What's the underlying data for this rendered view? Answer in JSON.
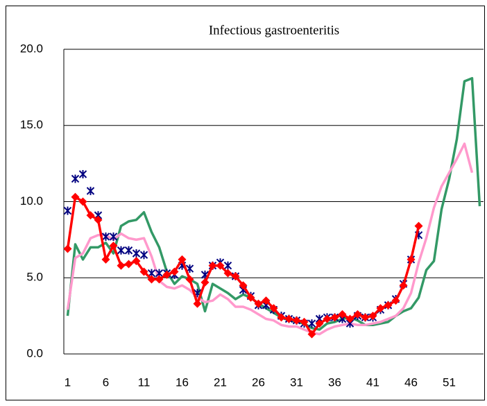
{
  "chart_data": {
    "type": "line",
    "title": "Infectious gastroenteritis",
    "categories": [
      "1",
      null,
      null,
      null,
      null,
      "6",
      null,
      null,
      null,
      null,
      "11",
      null,
      null,
      null,
      null,
      "16",
      null,
      null,
      null,
      null,
      "21",
      null,
      null,
      null,
      null,
      "26",
      null,
      null,
      null,
      null,
      "31",
      null,
      null,
      null,
      null,
      "36",
      null,
      null,
      null,
      null,
      "41",
      null,
      null,
      null,
      null,
      "46",
      null,
      null,
      null,
      null,
      "51",
      null,
      null,
      null,
      null
    ],
    "ylim": [
      0,
      20
    ],
    "yticks": [
      {
        "value": 0,
        "label": "0.0"
      },
      {
        "value": 5,
        "label": "5.0"
      },
      {
        "value": 10,
        "label": "10.0"
      },
      {
        "value": 15,
        "label": "15.0"
      },
      {
        "value": 20,
        "label": "20.0"
      }
    ],
    "grid": true,
    "series": [
      {
        "color": "#339966",
        "marker": "none",
        "line": true,
        "values": [
          2.5,
          7.2,
          6.2,
          7.0,
          7.0,
          7.3,
          6.6,
          8.4,
          8.7,
          8.8,
          9.3,
          8.0,
          7.0,
          5.4,
          4.6,
          5.1,
          4.9,
          4.6,
          2.8,
          4.6,
          4.3,
          4.0,
          3.6,
          3.9,
          3.7,
          3.3,
          3.0,
          2.7,
          2.4,
          2.2,
          2.1,
          2.0,
          1.7,
          1.6,
          2.0,
          2.1,
          2.3,
          2.4,
          2.2,
          1.9,
          1.9,
          2.0,
          2.1,
          2.5,
          2.8,
          3.0,
          3.7,
          5.5,
          6.1,
          9.5,
          11.5,
          14.1,
          17.9,
          18.1,
          9.7
        ]
      },
      {
        "color": "#ff99cc",
        "marker": "none",
        "line": true,
        "values": [
          2.9,
          6.3,
          6.6,
          7.6,
          7.8,
          7.8,
          7.5,
          7.9,
          7.6,
          7.5,
          7.6,
          6.4,
          4.8,
          4.4,
          4.3,
          4.5,
          4.2,
          3.7,
          3.4,
          3.5,
          3.9,
          3.6,
          3.1,
          3.1,
          2.9,
          2.6,
          2.3,
          2.2,
          1.9,
          1.8,
          1.8,
          1.6,
          1.4,
          1.3,
          1.6,
          1.8,
          1.9,
          2.0,
          1.9,
          1.9,
          2.0,
          2.1,
          2.3,
          2.5,
          3.0,
          4.0,
          6.0,
          7.6,
          9.6,
          11.0,
          11.9,
          12.8,
          13.8,
          11.9,
          null
        ]
      },
      {
        "color": "#000080",
        "marker": "asterisk",
        "line": false,
        "values": [
          9.4,
          11.5,
          11.8,
          10.7,
          9.1,
          7.7,
          7.7,
          6.8,
          6.8,
          6.6,
          6.5,
          5.3,
          5.3,
          5.3,
          5.2,
          5.8,
          5.6,
          4.0,
          5.2,
          5.8,
          6.0,
          5.8,
          5.1,
          4.2,
          3.8,
          3.2,
          3.2,
          2.9,
          2.5,
          2.3,
          2.2,
          2.0,
          2.0,
          2.3,
          2.4,
          2.4,
          2.3,
          2.0,
          2.5,
          2.4,
          2.4,
          2.9,
          3.2,
          3.6,
          4.6,
          6.2,
          7.8,
          null,
          null,
          null,
          null,
          null,
          null,
          null,
          null
        ]
      },
      {
        "color": "#ff0000",
        "marker": "diamond",
        "line": true,
        "values": [
          6.9,
          10.3,
          10.0,
          9.1,
          8.8,
          6.2,
          7.1,
          5.8,
          5.9,
          6.1,
          5.4,
          4.9,
          4.9,
          5.2,
          5.4,
          6.2,
          4.9,
          3.3,
          4.7,
          5.8,
          5.8,
          5.3,
          5.1,
          4.5,
          3.7,
          3.3,
          3.5,
          3.0,
          2.4,
          2.3,
          2.2,
          2.1,
          1.3,
          2.0,
          2.3,
          2.4,
          2.6,
          2.3,
          2.6,
          2.4,
          2.5,
          3.0,
          3.2,
          3.5,
          4.5,
          6.2,
          8.4,
          null,
          null,
          null,
          null,
          null,
          null,
          null,
          null
        ]
      }
    ]
  }
}
